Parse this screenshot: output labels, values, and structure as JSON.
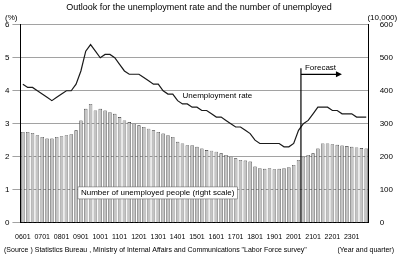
{
  "chart_data": {
    "type": "bar",
    "title": "Outlook for the unemployment rate and the number of unemployed",
    "x_label": "(Year and quarter)",
    "y_label": "(%)",
    "y2_label": "(10,000)",
    "source": "(Source ) Statistics Bureau , Ministry of Internal Affairs and Communications \"Labor Force survey\"",
    "categories": [
      "0601",
      null,
      null,
      null,
      "0701",
      null,
      null,
      null,
      "0801",
      null,
      null,
      null,
      "0901",
      null,
      null,
      null,
      "1001",
      null,
      null,
      null,
      "1101",
      null,
      null,
      null,
      "1201",
      null,
      null,
      null,
      "1301",
      null,
      null,
      null,
      "1401",
      null,
      null,
      null,
      "1501",
      null,
      null,
      null,
      "1601",
      null,
      null,
      null,
      "1701",
      null,
      null,
      null,
      "1801",
      null,
      null,
      null,
      "1901",
      null,
      null,
      null,
      "2001",
      null,
      null,
      null,
      "2101",
      null,
      null,
      null,
      "2201",
      null,
      null,
      null,
      "2301",
      null,
      null,
      null
    ],
    "series": [
      {
        "name": "Unemployment rate",
        "type": "line",
        "axis": "y",
        "color": "#1a1a1a",
        "values": [
          4.2,
          4.1,
          4.1,
          4.0,
          3.9,
          3.8,
          3.7,
          3.8,
          3.9,
          4.0,
          4.0,
          4.2,
          4.6,
          5.2,
          5.4,
          5.2,
          5.0,
          5.1,
          5.1,
          5.0,
          4.8,
          4.6,
          4.5,
          4.5,
          4.5,
          4.4,
          4.3,
          4.2,
          4.2,
          4.0,
          3.9,
          3.9,
          3.7,
          3.6,
          3.6,
          3.5,
          3.5,
          3.4,
          3.4,
          3.3,
          3.2,
          3.2,
          3.1,
          3.0,
          2.9,
          2.9,
          2.8,
          2.7,
          2.5,
          2.4,
          2.4,
          2.4,
          2.4,
          2.4,
          2.3,
          2.3,
          2.4,
          2.8,
          3.0,
          3.1,
          3.3,
          3.5,
          3.5,
          3.5,
          3.4,
          3.4,
          3.3,
          3.3,
          3.3,
          3.2,
          3.2,
          3.2
        ]
      },
      {
        "name": "Number of unemployed people (right scale)",
        "type": "bar",
        "axis": "y2",
        "color": "#c4c4c4",
        "values": [
          275,
          275,
          272,
          265,
          260,
          255,
          255,
          260,
          262,
          265,
          268,
          280,
          310,
          345,
          360,
          340,
          345,
          340,
          335,
          330,
          320,
          310,
          305,
          300,
          295,
          290,
          285,
          280,
          275,
          270,
          265,
          260,
          245,
          240,
          235,
          235,
          230,
          225,
          220,
          218,
          215,
          210,
          205,
          200,
          195,
          190,
          188,
          185,
          170,
          165,
          163,
          165,
          162,
          163,
          165,
          168,
          175,
          190,
          200,
          205,
          210,
          225,
          240,
          240,
          238,
          236,
          234,
          232,
          230,
          228,
          226,
          225
        ]
      }
    ],
    "forecast": {
      "label": "Forecast",
      "start_index": 58
    },
    "ylim": [
      0,
      6
    ],
    "yticks": [
      0,
      1,
      2,
      3,
      4,
      5,
      6
    ],
    "y2lim": [
      0,
      600
    ],
    "y2ticks": [
      0,
      100,
      200,
      300,
      400,
      500,
      600
    ],
    "grid": true
  }
}
